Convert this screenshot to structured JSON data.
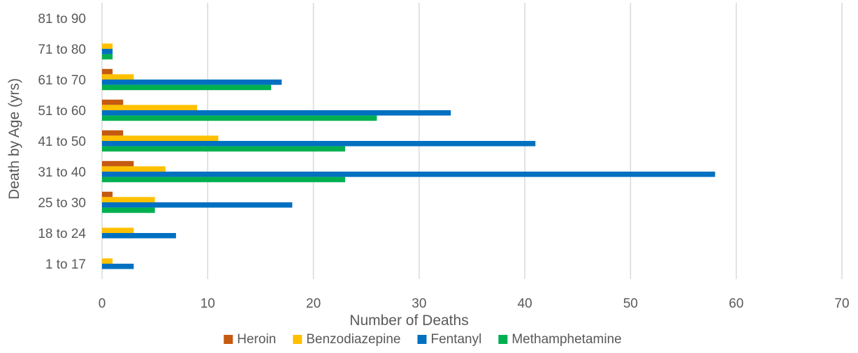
{
  "chart_data": {
    "type": "bar",
    "orientation": "horizontal",
    "categories": [
      "1 to 17",
      "18 to 24",
      "25 to 30",
      "31 to 40",
      "41 to 50",
      "51 to 60",
      "61 to 70",
      "71 to 80",
      "81 to 90"
    ],
    "series": [
      {
        "name": "Heroin",
        "color": "#C55A11",
        "values": [
          0,
          0,
          1,
          3,
          2,
          2,
          1,
          0,
          0
        ]
      },
      {
        "name": "Benzodiazepine",
        "color": "#FFC000",
        "values": [
          1,
          3,
          5,
          6,
          11,
          9,
          3,
          1,
          0
        ]
      },
      {
        "name": "Fentanyl",
        "color": "#0070C0",
        "values": [
          3,
          7,
          18,
          58,
          41,
          33,
          17,
          1,
          0
        ]
      },
      {
        "name": "Methamphetamine",
        "color": "#00B050",
        "values": [
          0,
          0,
          5,
          23,
          23,
          26,
          16,
          1,
          0
        ]
      }
    ],
    "xlabel": "Number of Deaths",
    "ylabel": "Death by Age (yrs)",
    "xlim": [
      0,
      70
    ],
    "xticks": [
      "0",
      "10",
      "20",
      "30",
      "40",
      "50",
      "60",
      "70"
    ],
    "grid": "vertical",
    "legend_position": "bottom"
  }
}
